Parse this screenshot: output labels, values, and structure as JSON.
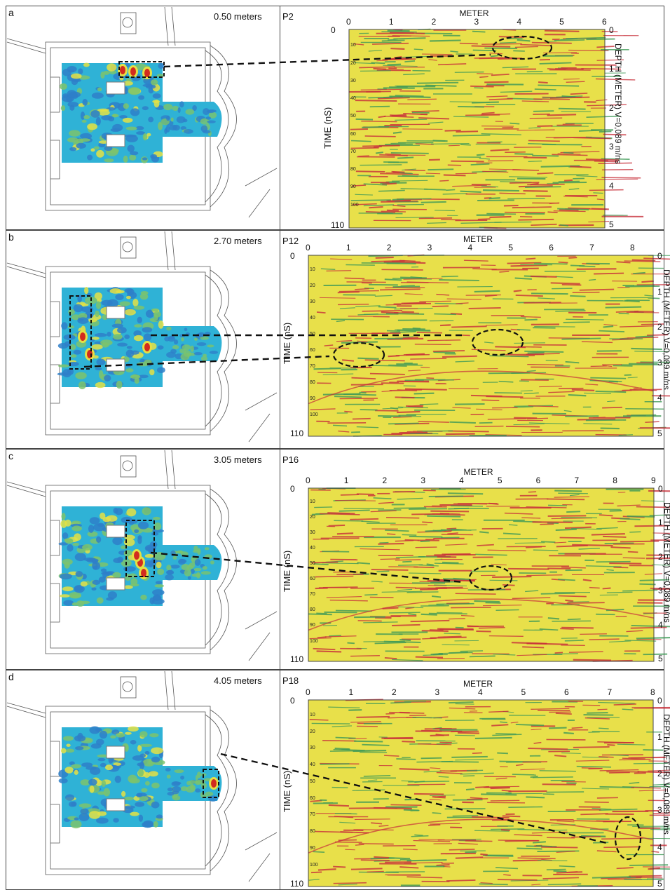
{
  "panels": [
    {
      "letter": "a",
      "depth_label": "0.50 meters",
      "profile": "P2",
      "x_axis": {
        "title": "METER",
        "ticks": [
          "0",
          "1",
          "2",
          "3",
          "4",
          "5",
          "6"
        ]
      },
      "time_ticks_major": [
        "0",
        "110"
      ],
      "time_ticks_minor": [
        "10",
        "20",
        "30",
        "40",
        "50",
        "60",
        "70",
        "80",
        "90",
        "100"
      ],
      "time_label": "TIME (nS)",
      "depth_ticks": [
        "0",
        "1",
        "2",
        "3",
        "4",
        "5"
      ],
      "depth_axis_label": "DEPTH (METER) V=0,089 m/ns"
    },
    {
      "letter": "b",
      "depth_label": "2.70 meters",
      "profile": "P12",
      "x_axis": {
        "title": "METER",
        "ticks": [
          "0",
          "1",
          "2",
          "3",
          "4",
          "5",
          "6",
          "7",
          "8"
        ]
      },
      "time_ticks_major": [
        "0",
        "110"
      ],
      "time_ticks_minor": [
        "10",
        "20",
        "30",
        "40",
        "50",
        "60",
        "70",
        "80",
        "90",
        "100"
      ],
      "time_label": "TIME (nS)",
      "depth_ticks": [
        "0",
        "1",
        "2",
        "3",
        "4",
        "5"
      ],
      "depth_axis_label": "DEPTH (METER) V=0,089 m/ns"
    },
    {
      "letter": "c",
      "depth_label": "3.05 meters",
      "profile": "P16",
      "x_axis": {
        "title": "METER",
        "ticks": [
          "0",
          "1",
          "2",
          "3",
          "4",
          "5",
          "6",
          "7",
          "8",
          "9"
        ]
      },
      "time_ticks_major": [
        "0",
        "110"
      ],
      "time_ticks_minor": [
        "10",
        "20",
        "30",
        "40",
        "50",
        "60",
        "70",
        "80",
        "90",
        "100"
      ],
      "time_label": "TIME (nS)",
      "depth_ticks": [
        "0",
        "1",
        "2",
        "3",
        "4",
        "5"
      ],
      "depth_axis_label": "DEPTH (METER) V=0,089 m/ns"
    },
    {
      "letter": "d",
      "depth_label": "4.05 meters",
      "profile": "P18",
      "x_axis": {
        "title": "METER",
        "ticks": [
          "0",
          "1",
          "2",
          "3",
          "4",
          "5",
          "6",
          "7",
          "8"
        ]
      },
      "time_ticks_major": [
        "0",
        "110"
      ],
      "time_ticks_minor": [
        "10",
        "20",
        "30",
        "40",
        "50",
        "60",
        "70",
        "80",
        "90",
        "100"
      ],
      "time_label": "TIME (nS)",
      "depth_ticks": [
        "0",
        "1",
        "2",
        "3",
        "4",
        "5"
      ],
      "depth_axis_label": "DEPTH (METER) V=0,089 m/ns"
    }
  ],
  "colors": {
    "radargram_bg": "#e8e04a",
    "radargram_red": "#c8303a",
    "radargram_green": "#3f9a57",
    "map_blue": "#2e7fc9",
    "map_cyan": "#2fb2d6",
    "map_green": "#7cc36c",
    "map_yellow": "#e4e044",
    "map_red": "#d22b1f"
  }
}
